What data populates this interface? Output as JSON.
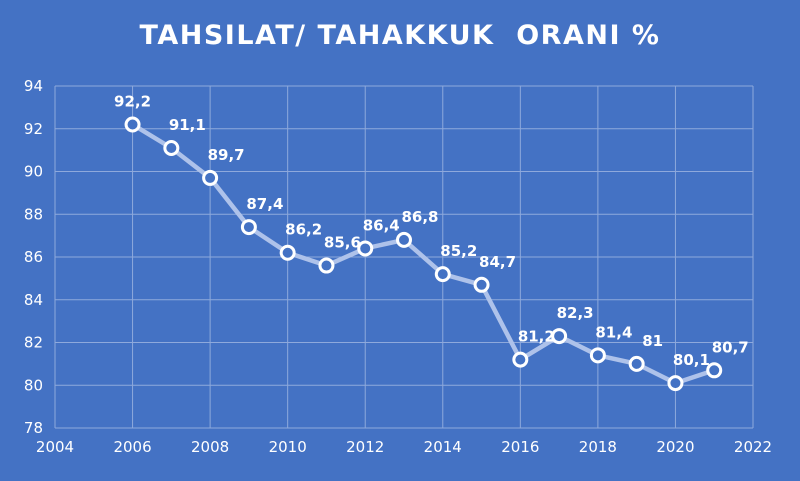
{
  "chart_data": {
    "type": "scatter",
    "title": "TAHSILAT/ TAHAKKUK  ORANI %",
    "x": [
      2006,
      2007,
      2008,
      2009,
      2010,
      2011,
      2012,
      2013,
      2014,
      2015,
      2016,
      2017,
      2018,
      2019,
      2020,
      2021
    ],
    "y": [
      92.2,
      91.1,
      89.7,
      87.4,
      86.2,
      85.6,
      86.4,
      86.8,
      85.2,
      84.7,
      81.2,
      82.3,
      81.4,
      81,
      80.1,
      80.7
    ],
    "data_labels": [
      "92,2",
      "91,1",
      "89,7",
      "87,4",
      "86,2",
      "85,6",
      "86,4",
      "86,8",
      "85,2",
      "84,7",
      "81,2",
      "82,3",
      "81,4",
      "81",
      "80,1",
      "80,7"
    ],
    "xlim": [
      2004,
      2022
    ],
    "ylim": [
      78,
      94
    ],
    "x_ticks": [
      "2004",
      "2006",
      "2008",
      "2010",
      "2012",
      "2014",
      "2016",
      "2018",
      "2020",
      "2022"
    ],
    "y_ticks": [
      "78",
      "80",
      "82",
      "84",
      "86",
      "88",
      "90",
      "92",
      "94"
    ],
    "grid": true,
    "legend": "none",
    "colors": {
      "background": "#4472c4",
      "line": "#aec2ea",
      "marker_fill": "#4472c4",
      "marker_stroke": "#ffffff",
      "grid": "#8ea9dc",
      "text": "#ffffff"
    }
  }
}
